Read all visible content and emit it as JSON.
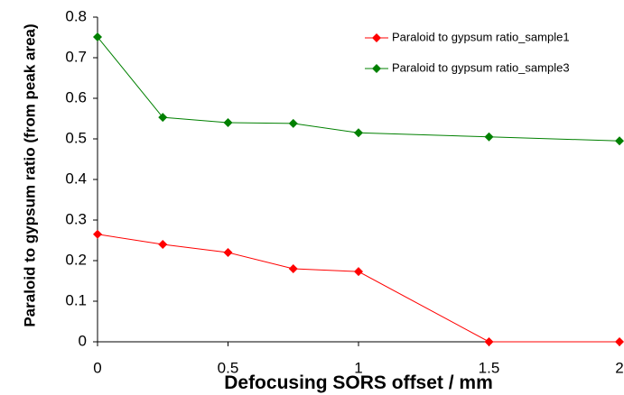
{
  "chart_data": {
    "type": "line",
    "x_label": "Defocusing SORS offset / mm",
    "y_label": "Paraloid to gypsum ratio (from peak area)",
    "series": [
      {
        "name": "Paraloid to gypsum ratio_sample1",
        "color": "#ff0000",
        "x": [
          0,
          0.25,
          0.5,
          0.75,
          1,
          1.5,
          2
        ],
        "values": [
          0.265,
          0.24,
          0.22,
          0.18,
          0.173,
          0,
          0
        ]
      },
      {
        "name": "Paraloid to gypsum ratio_sample3",
        "color": "#008000",
        "x": [
          0,
          0.25,
          0.5,
          0.75,
          1,
          1.5,
          2
        ],
        "values": [
          0.751,
          0.553,
          0.54,
          0.538,
          0.515,
          0.505,
          0.495
        ]
      }
    ],
    "xlim": [
      0,
      2
    ],
    "xticks": [
      0,
      0.5,
      1,
      1.5,
      2
    ],
    "ylim": [
      0,
      0.8
    ],
    "yticks": [
      0,
      0.1,
      0.2,
      0.3,
      0.4,
      0.5,
      0.6,
      0.7,
      0.8
    ],
    "grid": false,
    "legend": "top-right"
  }
}
